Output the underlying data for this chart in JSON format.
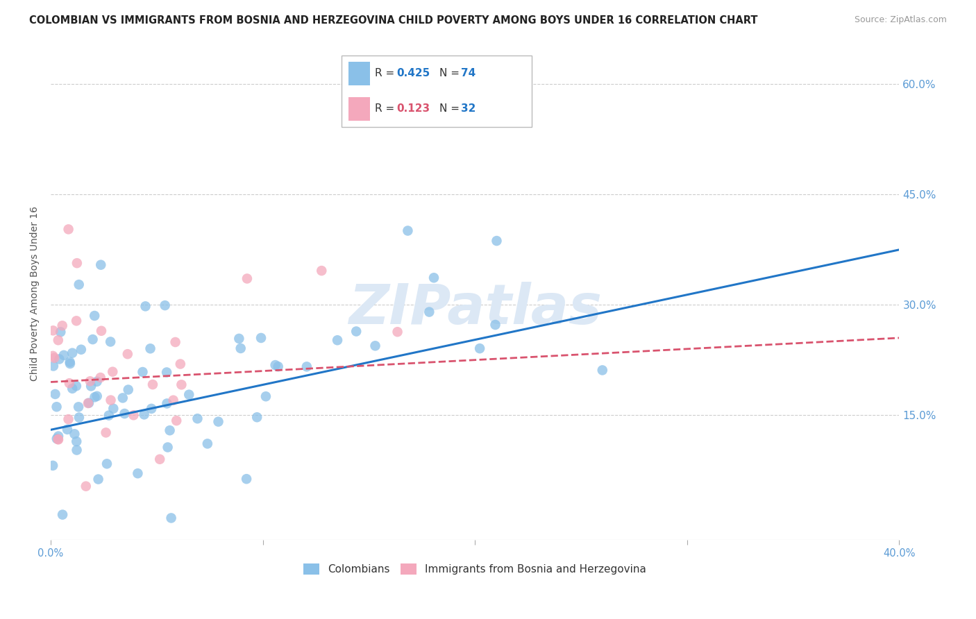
{
  "title": "COLOMBIAN VS IMMIGRANTS FROM BOSNIA AND HERZEGOVINA CHILD POVERTY AMONG BOYS UNDER 16 CORRELATION CHART",
  "source": "Source: ZipAtlas.com",
  "ylabel": "Child Poverty Among Boys Under 16",
  "xlabel": "",
  "xlim": [
    0.0,
    0.4
  ],
  "ylim": [
    -0.02,
    0.65
  ],
  "yticks": [
    0.0,
    0.15,
    0.3,
    0.45,
    0.6
  ],
  "ytick_labels": [
    "",
    "15.0%",
    "30.0%",
    "45.0%",
    "60.0%"
  ],
  "xticks": [
    0.0,
    0.1,
    0.2,
    0.3,
    0.4
  ],
  "xtick_labels": [
    "0.0%",
    "",
    "",
    "",
    "40.0%"
  ],
  "watermark": "ZIPatlas",
  "series": [
    {
      "name": "Colombians",
      "R": 0.425,
      "N": 74,
      "color": "#8ac0e8",
      "line_color": "#2176c7",
      "line_style": "solid",
      "trend_x0": 0.0,
      "trend_y0": 0.13,
      "trend_x1": 0.4,
      "trend_y1": 0.375
    },
    {
      "name": "Immigrants from Bosnia and Herzegovina",
      "R": 0.123,
      "N": 32,
      "color": "#f4a8bc",
      "line_color": "#d9536e",
      "line_style": "dashed",
      "trend_x0": 0.0,
      "trend_y0": 0.195,
      "trend_x1": 0.4,
      "trend_y1": 0.255
    }
  ],
  "title_color": "#222222",
  "title_fontsize": 10.5,
  "source_color": "#999999",
  "source_fontsize": 9,
  "axis_color": "#5b9bd5",
  "ylabel_color": "#555555",
  "ylabel_fontsize": 10,
  "watermark_color": "#dce8f5",
  "watermark_fontsize": 58,
  "grid_color": "#cccccc",
  "background_color": "#ffffff",
  "legend_R_color": "#2176c7",
  "legend_N_color": "#2176c7",
  "legend_R2_color": "#d9536e",
  "legend_N2_color": "#2176c7"
}
